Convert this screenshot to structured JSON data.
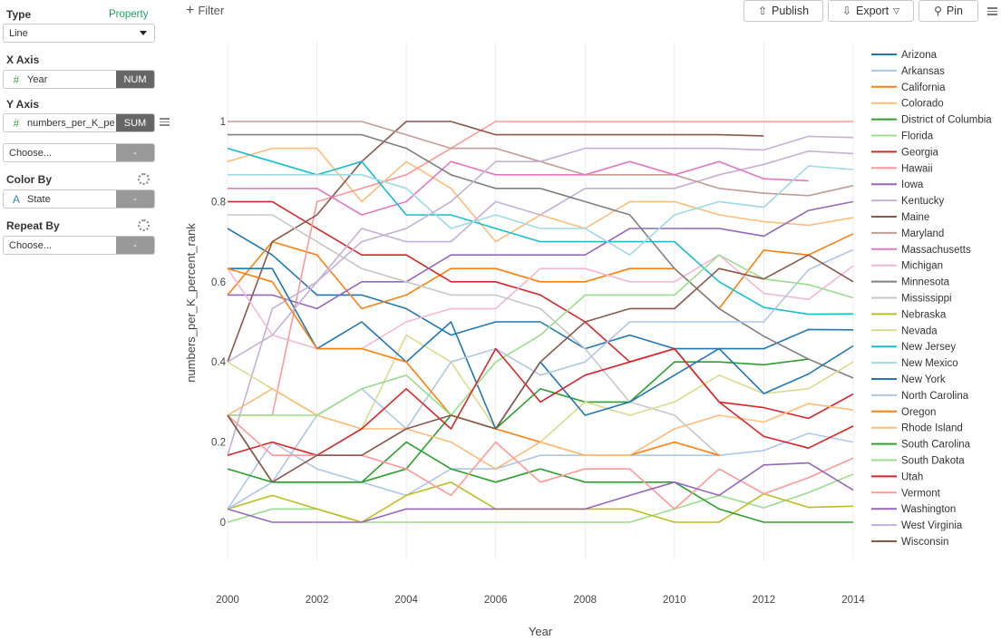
{
  "sidebar": {
    "type_label": "Type",
    "property_link": "Property",
    "type_value": "Line",
    "xaxis_label": "X Axis",
    "xaxis_field": "Year",
    "xaxis_tag": "NUM",
    "yaxis_label": "Y Axis",
    "yaxis_field": "numbers_per_K_pe",
    "yaxis_tag": "SUM",
    "choose1": "Choose...",
    "choose1_tag": "-",
    "colorby_label": "Color By",
    "colorby_field": "State",
    "colorby_tag": "-",
    "repeatby_label": "Repeat By",
    "choose2": "Choose...",
    "choose2_tag": "-"
  },
  "toolbar": {
    "filter_label": "Filter",
    "publish_label": "Publish",
    "export_label": "Export",
    "pin_label": "Pin"
  },
  "chart_data": {
    "type": "line",
    "xlabel": "Year",
    "ylabel": "numbers_per_K_percent_rank",
    "xlim": [
      2000,
      2014
    ],
    "ylim": [
      0,
      1
    ],
    "x_ticks": [
      "2000",
      "2002",
      "2004",
      "2006",
      "2008",
      "2010",
      "2012",
      "2014"
    ],
    "y_ticks": [
      "0",
      "0.2",
      "0.4",
      "0.6",
      "0.8",
      "1"
    ],
    "grid": "vertical",
    "legend": "right",
    "x": [
      2000,
      2001,
      2002,
      2003,
      2004,
      2005,
      2006,
      2007,
      2008,
      2009,
      2010,
      2011,
      2012,
      2013,
      2014
    ],
    "series": [
      {
        "name": "Arizona",
        "color": "#1f77b4",
        "values": [
          0.733,
          0.667,
          0.567,
          0.567,
          0.533,
          0.467,
          0.5,
          0.5,
          0.433,
          0.467,
          0.433,
          0.433,
          0.433,
          0.481,
          0.48
        ]
      },
      {
        "name": "Arkansas",
        "color": "#aec7e8",
        "values": [
          0.033,
          0.2,
          0.133,
          0.1,
          0.067,
          0.133,
          0.133,
          0.167,
          0.167,
          0.167,
          0.167,
          0.167,
          0.179,
          0.222,
          0.2
        ]
      },
      {
        "name": "California",
        "color": "#ff7f0e",
        "values": [
          0.567,
          0.7,
          0.667,
          0.533,
          0.567,
          0.633,
          0.633,
          0.6,
          0.6,
          0.633,
          0.633,
          0.533,
          0.679,
          0.667,
          0.72
        ]
      },
      {
        "name": "Colorado",
        "color": "#ffbb78",
        "values": [
          0.9,
          0.933,
          0.933,
          0.8,
          0.9,
          0.833,
          0.7,
          0.767,
          0.733,
          0.8,
          0.8,
          0.767,
          0.75,
          0.741,
          0.76
        ]
      },
      {
        "name": "District of Columbia",
        "color": "#2ca02c",
        "values": [
          0.133,
          0.1,
          0.1,
          0.1,
          0.133,
          0.267,
          0.233,
          0.333,
          0.3,
          0.3,
          0.4,
          0.4,
          0.393,
          0.407,
          null
        ]
      },
      {
        "name": "Florida",
        "color": "#98df8a",
        "values": [
          0.0,
          0.033,
          0.033,
          0.0,
          0.0,
          0.0,
          0.0,
          0.0,
          0.0,
          0.0,
          0.033,
          0.067,
          0.036,
          0.074,
          0.12
        ]
      },
      {
        "name": "Georgia",
        "color": "#d62728",
        "values": [
          0.8,
          0.8,
          0.733,
          0.667,
          0.667,
          0.6,
          0.6,
          0.567,
          0.5,
          0.4,
          0.433,
          0.3,
          0.286,
          0.259,
          0.32
        ]
      },
      {
        "name": "Hawaii",
        "color": "#ff9896",
        "values": [
          0.267,
          0.267,
          0.8,
          0.833,
          0.867,
          0.933,
          1.0,
          1.0,
          1.0,
          1.0,
          1.0,
          1.0,
          1.0,
          1.0,
          1.0
        ]
      },
      {
        "name": "Iowa",
        "color": "#9467bd",
        "values": [
          0.567,
          0.567,
          0.533,
          0.6,
          0.6,
          0.667,
          0.667,
          0.667,
          0.667,
          0.733,
          0.733,
          0.733,
          0.714,
          0.778,
          0.8
        ]
      },
      {
        "name": "Kentucky",
        "color": "#c5b0d5",
        "values": [
          0.167,
          0.533,
          0.6,
          0.733,
          0.7,
          0.7,
          0.8,
          0.767,
          0.833,
          0.833,
          0.833,
          0.867,
          0.893,
          0.926,
          0.92
        ]
      },
      {
        "name": "Maine",
        "color": "#8c564b",
        "values": [
          0.4,
          0.7,
          0.767,
          0.9,
          1.0,
          1.0,
          0.967,
          0.967,
          0.967,
          0.967,
          0.967,
          0.967,
          0.964,
          null,
          null
        ]
      },
      {
        "name": "Maryland",
        "color": "#c49c94",
        "values": [
          1.0,
          1.0,
          1.0,
          1.0,
          0.967,
          0.933,
          0.933,
          0.9,
          0.867,
          0.867,
          0.867,
          0.833,
          0.821,
          0.815,
          0.84
        ]
      },
      {
        "name": "Massachusetts",
        "color": "#e377c2",
        "values": [
          0.833,
          0.833,
          0.833,
          0.767,
          0.8,
          0.9,
          0.867,
          0.867,
          0.867,
          0.9,
          0.867,
          0.9,
          0.857,
          0.852,
          null
        ]
      },
      {
        "name": "Michigan",
        "color": "#f7b6d2",
        "values": [
          0.633,
          0.467,
          0.433,
          0.433,
          0.5,
          0.533,
          0.533,
          0.633,
          0.633,
          0.6,
          0.6,
          0.667,
          0.571,
          0.556,
          0.64
        ]
      },
      {
        "name": "Minnesota",
        "color": "#7f7f7f",
        "values": [
          0.967,
          0.967,
          0.967,
          0.967,
          0.933,
          0.867,
          0.833,
          0.833,
          0.8,
          0.767,
          0.633,
          0.533,
          0.464,
          0.407,
          0.36
        ]
      },
      {
        "name": "Mississippi",
        "color": "#c7c7c7",
        "values": [
          0.767,
          0.767,
          0.7,
          0.633,
          0.6,
          0.567,
          0.567,
          0.533,
          0.433,
          0.3,
          0.267,
          0.167,
          null,
          null,
          null
        ]
      },
      {
        "name": "Nebraska",
        "color": "#bcbd22",
        "values": [
          0.033,
          0.067,
          0.033,
          0.0,
          0.067,
          0.1,
          0.033,
          0.033,
          0.033,
          0.033,
          0.0,
          0.0,
          0.071,
          0.037,
          0.04
        ]
      },
      {
        "name": "Nevada",
        "color": "#dbdb8d",
        "values": [
          0.4,
          0.333,
          0.267,
          0.233,
          0.467,
          0.4,
          0.233,
          0.2,
          0.3,
          0.267,
          0.3,
          0.367,
          0.321,
          0.333,
          0.4
        ]
      },
      {
        "name": "New Jersey",
        "color": "#17becf",
        "values": [
          0.933,
          0.9,
          0.867,
          0.9,
          0.767,
          0.767,
          0.733,
          0.7,
          0.7,
          0.7,
          0.7,
          0.6,
          0.536,
          0.519,
          0.52
        ]
      },
      {
        "name": "New Mexico",
        "color": "#9edae5",
        "values": [
          0.867,
          0.867,
          0.867,
          0.867,
          0.833,
          0.733,
          0.767,
          0.733,
          0.733,
          0.667,
          0.767,
          0.8,
          0.786,
          0.889,
          0.88
        ]
      },
      {
        "name": "New York",
        "color": "#1f77b4",
        "values": [
          0.633,
          0.633,
          0.433,
          0.5,
          0.4,
          0.5,
          0.233,
          0.4,
          0.267,
          0.3,
          0.367,
          0.433,
          0.321,
          0.37,
          0.44
        ]
      },
      {
        "name": "North Carolina",
        "color": "#aec7e8",
        "values": [
          0.033,
          0.1,
          0.267,
          0.333,
          0.233,
          0.4,
          0.433,
          0.367,
          0.4,
          0.5,
          0.5,
          0.5,
          0.5,
          0.63,
          0.68
        ]
      },
      {
        "name": "Oregon",
        "color": "#ff7f0e",
        "values": [
          0.633,
          0.6,
          0.433,
          0.433,
          0.4,
          0.267,
          0.233,
          0.2,
          0.167,
          0.167,
          0.2,
          0.167,
          null,
          null,
          null
        ]
      },
      {
        "name": "Rhode Island",
        "color": "#ffbb78",
        "values": [
          0.267,
          0.333,
          0.267,
          0.233,
          0.233,
          0.2,
          0.133,
          0.2,
          0.167,
          0.167,
          0.233,
          0.267,
          0.25,
          0.296,
          0.28
        ]
      },
      {
        "name": "South Carolina",
        "color": "#2ca02c",
        "values": [
          0.267,
          0.1,
          0.1,
          0.1,
          0.2,
          0.133,
          0.1,
          0.133,
          0.1,
          0.1,
          0.1,
          0.033,
          0.0,
          0.0,
          0.0
        ]
      },
      {
        "name": "South Dakota",
        "color": "#98df8a",
        "values": [
          0.267,
          0.267,
          0.267,
          0.333,
          0.367,
          0.267,
          0.4,
          0.467,
          0.567,
          0.567,
          0.567,
          0.667,
          0.607,
          0.593,
          0.56
        ]
      },
      {
        "name": "Utah",
        "color": "#d62728",
        "values": [
          0.167,
          0.2,
          0.167,
          0.233,
          0.333,
          0.233,
          0.433,
          0.3,
          0.367,
          0.4,
          0.433,
          0.3,
          0.214,
          0.185,
          0.24
        ]
      },
      {
        "name": "Vermont",
        "color": "#ff9896",
        "values": [
          0.267,
          0.167,
          0.167,
          0.167,
          0.133,
          0.067,
          0.2,
          0.1,
          0.133,
          0.133,
          0.033,
          0.133,
          0.071,
          0.111,
          0.16
        ]
      },
      {
        "name": "Washington",
        "color": "#9467bd",
        "values": [
          0.033,
          0.0,
          0.0,
          0.0,
          0.033,
          0.033,
          0.033,
          0.033,
          0.033,
          0.067,
          0.1,
          0.067,
          0.143,
          0.148,
          0.08
        ]
      },
      {
        "name": "West Virginia",
        "color": "#c5b0d5",
        "values": [
          0.4,
          0.467,
          0.6,
          0.7,
          0.733,
          0.8,
          0.9,
          0.9,
          0.933,
          0.933,
          0.933,
          0.933,
          0.929,
          0.963,
          0.96
        ]
      },
      {
        "name": "Wisconsin",
        "color": "#8c564b",
        "values": [
          0.267,
          0.1,
          0.167,
          0.167,
          0.233,
          0.267,
          0.233,
          0.4,
          0.5,
          0.533,
          0.533,
          0.633,
          0.607,
          0.667,
          0.6
        ]
      }
    ]
  }
}
